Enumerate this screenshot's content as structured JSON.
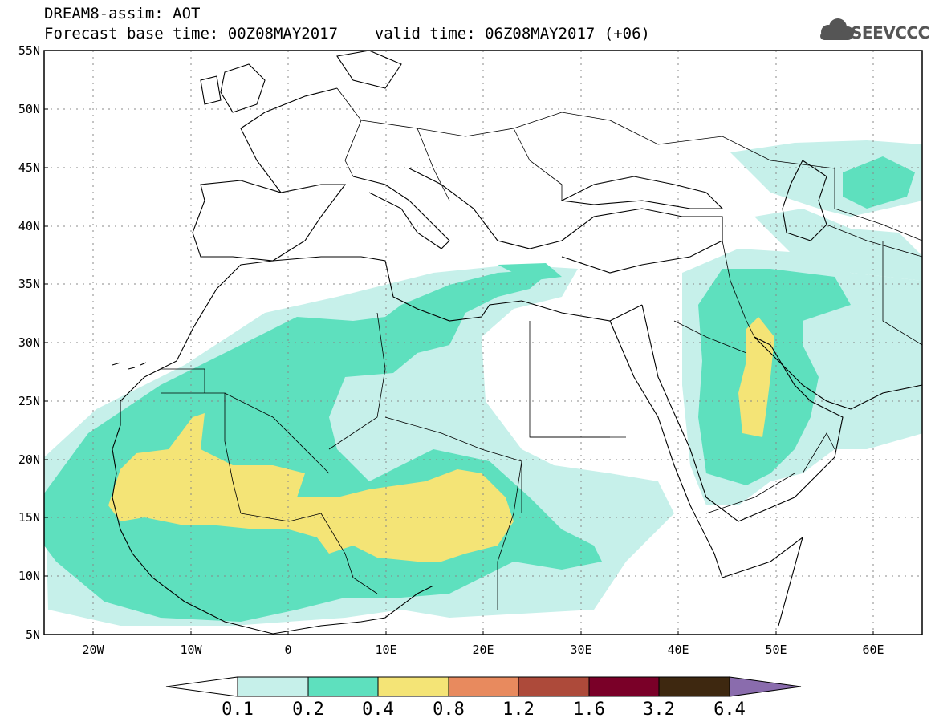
{
  "header": {
    "title_line1": "DREAM8-assim: AOT",
    "title_line2": "Forecast base time: 00Z08MAY2017    valid time: 06Z08MAY2017 (+06)",
    "logo_text": "SEEVCCC",
    "logo_icon": "cloud-icon"
  },
  "map": {
    "region": "North Africa, Europe, Middle East",
    "projection": "equirectangular",
    "lon_range": [
      -25,
      65
    ],
    "lat_range": [
      5,
      55
    ],
    "grid": "dotted",
    "lat_ticks": [
      5,
      10,
      15,
      20,
      25,
      30,
      35,
      40,
      45,
      50,
      55
    ],
    "lat_labels": [
      "5N",
      "10N",
      "15N",
      "20N",
      "25N",
      "30N",
      "35N",
      "40N",
      "45N",
      "50N",
      "55N"
    ],
    "lon_ticks": [
      -20,
      -10,
      0,
      10,
      20,
      30,
      40,
      50,
      60
    ],
    "lon_labels": [
      "20W",
      "10W",
      "0",
      "10E",
      "20E",
      "30E",
      "40E",
      "50E",
      "60E"
    ]
  },
  "legend": {
    "levels": [
      "0.1",
      "0.2",
      "0.4",
      "0.8",
      "1.2",
      "1.6",
      "3.2",
      "6.4"
    ],
    "colors": [
      "#ffffff",
      "#c6f0ea",
      "#5ee0be",
      "#f4e476",
      "#e88a5e",
      "#ad4a3a",
      "#7a0028",
      "#3e2810",
      "#8a6cad"
    ]
  }
}
